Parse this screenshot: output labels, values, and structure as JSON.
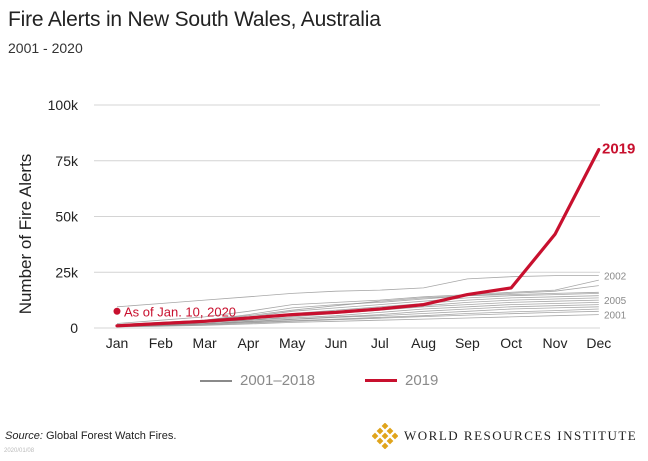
{
  "header": {
    "title": "Fire Alerts in New South Wales, Australia",
    "subtitle": "2001 - 2020"
  },
  "chart_data": {
    "type": "line",
    "title": "Fire Alerts in New South Wales, Australia",
    "subtitle": "2001 - 2020",
    "xlabel": "",
    "ylabel": "Number of Fire Alerts",
    "categories": [
      "Jan",
      "Feb",
      "Mar",
      "Apr",
      "May",
      "Jun",
      "Jul",
      "Aug",
      "Sep",
      "Oct",
      "Nov",
      "Dec"
    ],
    "yticks": [
      "0",
      "25k",
      "50k",
      "75k",
      "100k"
    ],
    "ylim": [
      0,
      100000
    ],
    "grid": true,
    "series_2019": {
      "name": "2019",
      "color": "#c8102e",
      "values": [
        1000,
        2000,
        3000,
        4500,
        6000,
        7000,
        8500,
        10500,
        15000,
        18000,
        42000,
        80000
      ],
      "label": "2019"
    },
    "point_2020": {
      "name": "2020",
      "month": "Jan",
      "value": 7500,
      "color": "#c8102e",
      "label": "As of Jan. 10, 2020"
    },
    "historical": {
      "name": "2001–2018",
      "color": "#8a8a8a",
      "series": [
        {
          "name": "2002",
          "values": [
            9500,
            11000,
            12500,
            14000,
            15500,
            16500,
            17000,
            18000,
            22000,
            23000,
            23500,
            23500
          ]
        },
        {
          "name": "",
          "values": [
            2000,
            3500,
            5000,
            7500,
            10500,
            11500,
            12500,
            14000,
            15000,
            16000,
            17000,
            21500
          ]
        },
        {
          "name": "",
          "values": [
            1500,
            2500,
            3500,
            6000,
            9000,
            10500,
            11500,
            13000,
            14500,
            15500,
            16500,
            19000
          ]
        },
        {
          "name": "",
          "values": [
            1500,
            2500,
            3500,
            5500,
            8000,
            10000,
            12000,
            13500,
            14500,
            15000,
            15500,
            16000
          ]
        },
        {
          "name": "",
          "values": [
            1500,
            2000,
            3000,
            5000,
            7500,
            9000,
            10500,
            12000,
            13500,
            14500,
            15000,
            15500
          ]
        },
        {
          "name": "",
          "values": [
            1000,
            2000,
            3000,
            4500,
            6500,
            8000,
            9500,
            11000,
            12500,
            13500,
            14000,
            14500
          ]
        },
        {
          "name": "",
          "values": [
            1000,
            2000,
            3000,
            4000,
            5500,
            7000,
            8500,
            10000,
            11500,
            12500,
            13000,
            13500
          ]
        },
        {
          "name": "2005",
          "values": [
            1000,
            1500,
            2500,
            3500,
            5000,
            6500,
            8000,
            9500,
            10500,
            11500,
            12000,
            12500
          ]
        },
        {
          "name": "",
          "values": [
            800,
            1500,
            2500,
            3500,
            4500,
            5500,
            7000,
            8500,
            9500,
            10500,
            11000,
            11500
          ]
        },
        {
          "name": "",
          "values": [
            800,
            1500,
            2000,
            3000,
            4000,
            5000,
            6000,
            7500,
            8500,
            9500,
            10000,
            10500
          ]
        },
        {
          "name": "",
          "values": [
            700,
            1200,
            2000,
            2800,
            3800,
            4800,
            5500,
            6500,
            7500,
            8500,
            9000,
            9500
          ]
        },
        {
          "name": "",
          "values": [
            700,
            1200,
            1800,
            2500,
            3300,
            4000,
            4800,
            5500,
            6500,
            7200,
            7800,
            8500
          ]
        },
        {
          "name": "",
          "values": [
            600,
            1000,
            1500,
            2200,
            3000,
            3700,
            4400,
            5100,
            5800,
            6400,
            7000,
            7500
          ]
        },
        {
          "name": "2001",
          "values": [
            500,
            800,
            1200,
            1800,
            2500,
            3000,
            3500,
            4000,
            4500,
            5000,
            5500,
            6000
          ]
        }
      ]
    }
  },
  "legend": {
    "historical_label": "2001–2018",
    "current_label": "2019"
  },
  "footer": {
    "source_label": "Source:",
    "source_text": " Global Forest Watch Fires.",
    "date_stamp": "2020/01/08",
    "org_name": "WORLD RESOURCES INSTITUTE",
    "logo_color": "#e0a41c"
  }
}
